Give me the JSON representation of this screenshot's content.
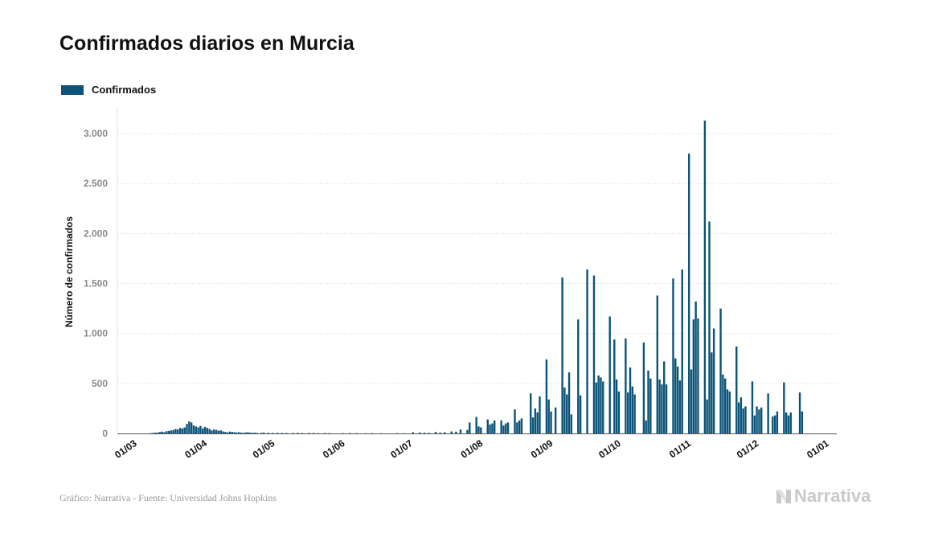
{
  "header": {
    "title": "Confirmados diarios en Murcia"
  },
  "legend": {
    "label": "Confirmados",
    "color": "#0b5378"
  },
  "footer": {
    "source": "Gráfico: Narrativa - Fuente: Universidad Johns Hopkins",
    "brand": "Narrativa"
  },
  "chart_data": {
    "type": "bar",
    "title": "Confirmados diarios en Murcia",
    "ylabel": "Número de confirmados",
    "xlabel": "",
    "ylim": [
      0,
      3250
    ],
    "yticks": [
      0,
      500,
      1000,
      1500,
      2000,
      2500,
      3000
    ],
    "ytick_labels": [
      "0",
      "500",
      "1.000",
      "1.500",
      "2.000",
      "2.500",
      "3.000"
    ],
    "xticks": [
      "01/03",
      "01/04",
      "01/05",
      "01/06",
      "01/07",
      "01/08",
      "01/09",
      "01/10",
      "01/11",
      "01/12",
      "01/01"
    ],
    "x_range": [
      "2020-03-01",
      "2021-01-01"
    ],
    "grid": true,
    "legend_position": "top-left",
    "color": "#0b5378",
    "series": [
      {
        "name": "Confirmados",
        "points": [
          [
            "2020-03-09",
            3
          ],
          [
            "2020-03-10",
            5
          ],
          [
            "2020-03-11",
            8
          ],
          [
            "2020-03-12",
            8
          ],
          [
            "2020-03-13",
            15
          ],
          [
            "2020-03-14",
            18
          ],
          [
            "2020-03-15",
            12
          ],
          [
            "2020-03-16",
            22
          ],
          [
            "2020-03-17",
            25
          ],
          [
            "2020-03-18",
            30
          ],
          [
            "2020-03-19",
            35
          ],
          [
            "2020-03-20",
            45
          ],
          [
            "2020-03-21",
            40
          ],
          [
            "2020-03-22",
            55
          ],
          [
            "2020-03-23",
            50
          ],
          [
            "2020-03-24",
            60
          ],
          [
            "2020-03-25",
            95
          ],
          [
            "2020-03-26",
            120
          ],
          [
            "2020-03-27",
            110
          ],
          [
            "2020-03-28",
            80
          ],
          [
            "2020-03-29",
            70
          ],
          [
            "2020-03-30",
            60
          ],
          [
            "2020-03-31",
            75
          ],
          [
            "2020-04-01",
            50
          ],
          [
            "2020-04-02",
            65
          ],
          [
            "2020-04-03",
            55
          ],
          [
            "2020-04-04",
            45
          ],
          [
            "2020-04-05",
            30
          ],
          [
            "2020-04-06",
            40
          ],
          [
            "2020-04-07",
            35
          ],
          [
            "2020-04-08",
            28
          ],
          [
            "2020-04-09",
            30
          ],
          [
            "2020-04-10",
            20
          ],
          [
            "2020-04-11",
            15
          ],
          [
            "2020-04-12",
            10
          ],
          [
            "2020-04-13",
            18
          ],
          [
            "2020-04-14",
            15
          ],
          [
            "2020-04-15",
            12
          ],
          [
            "2020-04-16",
            10
          ],
          [
            "2020-04-17",
            12
          ],
          [
            "2020-04-18",
            8
          ],
          [
            "2020-04-19",
            6
          ],
          [
            "2020-04-20",
            10
          ],
          [
            "2020-04-21",
            12
          ],
          [
            "2020-04-22",
            8
          ],
          [
            "2020-04-23",
            6
          ],
          [
            "2020-04-24",
            8
          ],
          [
            "2020-04-25",
            5
          ],
          [
            "2020-04-27",
            6
          ],
          [
            "2020-04-28",
            8
          ],
          [
            "2020-04-30",
            6
          ],
          [
            "2020-05-02",
            5
          ],
          [
            "2020-05-04",
            6
          ],
          [
            "2020-05-06",
            5
          ],
          [
            "2020-05-08",
            4
          ],
          [
            "2020-05-11",
            5
          ],
          [
            "2020-05-13",
            6
          ],
          [
            "2020-05-15",
            4
          ],
          [
            "2020-05-18",
            5
          ],
          [
            "2020-05-20",
            4
          ],
          [
            "2020-05-22",
            3
          ],
          [
            "2020-05-25",
            4
          ],
          [
            "2020-05-27",
            3
          ],
          [
            "2020-06-02",
            3
          ],
          [
            "2020-06-05",
            4
          ],
          [
            "2020-06-08",
            3
          ],
          [
            "2020-06-12",
            2
          ],
          [
            "2020-06-15",
            3
          ],
          [
            "2020-06-19",
            2
          ],
          [
            "2020-06-26",
            3
          ],
          [
            "2020-06-29",
            2
          ],
          [
            "2020-07-03",
            12
          ],
          [
            "2020-07-06",
            10
          ],
          [
            "2020-07-08",
            8
          ],
          [
            "2020-07-10",
            6
          ],
          [
            "2020-07-13",
            15
          ],
          [
            "2020-07-15",
            8
          ],
          [
            "2020-07-17",
            12
          ],
          [
            "2020-07-20",
            20
          ],
          [
            "2020-07-22",
            18
          ],
          [
            "2020-07-24",
            40
          ],
          [
            "2020-07-27",
            35
          ],
          [
            "2020-07-28",
            110
          ],
          [
            "2020-07-31",
            165
          ],
          [
            "2020-08-01",
            70
          ],
          [
            "2020-08-02",
            60
          ],
          [
            "2020-08-05",
            140
          ],
          [
            "2020-08-06",
            90
          ],
          [
            "2020-08-07",
            100
          ],
          [
            "2020-08-08",
            130
          ],
          [
            "2020-08-11",
            130
          ],
          [
            "2020-08-12",
            80
          ],
          [
            "2020-08-13",
            100
          ],
          [
            "2020-08-14",
            110
          ],
          [
            "2020-08-17",
            240
          ],
          [
            "2020-08-18",
            110
          ],
          [
            "2020-08-19",
            130
          ],
          [
            "2020-08-20",
            150
          ],
          [
            "2020-08-24",
            400
          ],
          [
            "2020-08-25",
            160
          ],
          [
            "2020-08-26",
            250
          ],
          [
            "2020-08-27",
            210
          ],
          [
            "2020-08-28",
            370
          ],
          [
            "2020-08-31",
            740
          ],
          [
            "2020-09-01",
            340
          ],
          [
            "2020-09-02",
            220
          ],
          [
            "2020-09-04",
            260
          ],
          [
            "2020-09-07",
            1560
          ],
          [
            "2020-09-08",
            460
          ],
          [
            "2020-09-09",
            390
          ],
          [
            "2020-09-10",
            610
          ],
          [
            "2020-09-11",
            190
          ],
          [
            "2020-09-14",
            1140
          ],
          [
            "2020-09-15",
            380
          ],
          [
            "2020-09-18",
            1640
          ],
          [
            "2020-09-21",
            1580
          ],
          [
            "2020-09-22",
            510
          ],
          [
            "2020-09-23",
            580
          ],
          [
            "2020-09-24",
            560
          ],
          [
            "2020-09-25",
            520
          ],
          [
            "2020-09-28",
            1170
          ],
          [
            "2020-09-30",
            940
          ],
          [
            "2020-10-01",
            540
          ],
          [
            "2020-10-02",
            420
          ],
          [
            "2020-10-05",
            950
          ],
          [
            "2020-10-06",
            410
          ],
          [
            "2020-10-07",
            660
          ],
          [
            "2020-10-08",
            470
          ],
          [
            "2020-10-09",
            390
          ],
          [
            "2020-10-13",
            910
          ],
          [
            "2020-10-14",
            130
          ],
          [
            "2020-10-15",
            630
          ],
          [
            "2020-10-16",
            550
          ],
          [
            "2020-10-19",
            1380
          ],
          [
            "2020-10-20",
            540
          ],
          [
            "2020-10-21",
            490
          ],
          [
            "2020-10-22",
            720
          ],
          [
            "2020-10-23",
            490
          ],
          [
            "2020-10-26",
            1550
          ],
          [
            "2020-10-27",
            750
          ],
          [
            "2020-10-28",
            670
          ],
          [
            "2020-10-29",
            530
          ],
          [
            "2020-10-30",
            1640
          ],
          [
            "2020-11-02",
            2800
          ],
          [
            "2020-11-03",
            640
          ],
          [
            "2020-11-04",
            1140
          ],
          [
            "2020-11-05",
            1320
          ],
          [
            "2020-11-06",
            1150
          ],
          [
            "2020-11-09",
            3130
          ],
          [
            "2020-11-10",
            340
          ],
          [
            "2020-11-11",
            2120
          ],
          [
            "2020-11-12",
            810
          ],
          [
            "2020-11-13",
            1050
          ],
          [
            "2020-11-16",
            1250
          ],
          [
            "2020-11-17",
            590
          ],
          [
            "2020-11-18",
            550
          ],
          [
            "2020-11-19",
            440
          ],
          [
            "2020-11-20",
            420
          ],
          [
            "2020-11-23",
            870
          ],
          [
            "2020-11-24",
            310
          ],
          [
            "2020-11-25",
            360
          ],
          [
            "2020-11-26",
            250
          ],
          [
            "2020-11-27",
            270
          ],
          [
            "2020-11-30",
            520
          ],
          [
            "2020-12-01",
            180
          ],
          [
            "2020-12-02",
            270
          ],
          [
            "2020-12-03",
            240
          ],
          [
            "2020-12-04",
            260
          ],
          [
            "2020-12-07",
            400
          ],
          [
            "2020-12-09",
            170
          ],
          [
            "2020-12-10",
            180
          ],
          [
            "2020-12-11",
            220
          ],
          [
            "2020-12-14",
            510
          ],
          [
            "2020-12-15",
            210
          ],
          [
            "2020-12-16",
            180
          ],
          [
            "2020-12-17",
            210
          ],
          [
            "2020-12-21",
            410
          ],
          [
            "2020-12-22",
            220
          ]
        ]
      }
    ]
  }
}
